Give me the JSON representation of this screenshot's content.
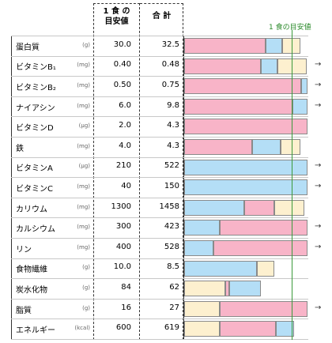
{
  "header": {
    "target": "1 食 の\n目安値",
    "total": "合 計",
    "legend": "1 食の目安値"
  },
  "rows": [
    {
      "name": "蛋白質",
      "unit": "(g)",
      "target": "30.0",
      "total": "32.5",
      "segments": [
        {
          "color": "#f8b4c8",
          "value": 76
        },
        {
          "color": "#b4def6",
          "value": 15
        },
        {
          "color": "#fdf0cf",
          "value": 17
        }
      ]
    },
    {
      "name": "ビタミンB₁",
      "unit": "(mg)",
      "target": "0.40",
      "total": "0.48",
      "arrow": "→",
      "segments": [
        {
          "color": "#f8b4c8",
          "value": 71
        },
        {
          "color": "#b4def6",
          "value": 16
        },
        {
          "color": "#fdf0cf",
          "value": 27
        }
      ]
    },
    {
      "name": "ビタミンB₂",
      "unit": "(mg)",
      "target": "0.50",
      "total": "0.75",
      "arrow": "→",
      "segments": [
        {
          "color": "#f8b4c8",
          "value": 109
        },
        {
          "color": "#b4def6",
          "value": 6
        }
      ]
    },
    {
      "name": "ナイアシン",
      "unit": "(mg)",
      "target": "6.0",
      "total": "9.8",
      "arrow": "→",
      "segments": [
        {
          "color": "#f8b4c8",
          "value": 101
        },
        {
          "color": "#b4def6",
          "value": 14
        }
      ]
    },
    {
      "name": "ビタミンD",
      "unit": "(μg)",
      "target": "2.0",
      "total": "4.3",
      "segments": [
        {
          "color": "#f8b4c8",
          "value": 115
        }
      ]
    },
    {
      "name": "鉄",
      "unit": "(mg)",
      "target": "4.0",
      "total": "4.3",
      "segments": [
        {
          "color": "#f8b4c8",
          "value": 63
        },
        {
          "color": "#b4def6",
          "value": 27
        },
        {
          "color": "#fdf0cf",
          "value": 18
        }
      ]
    },
    {
      "name": "ビタミンA",
      "unit": "(μg)",
      "target": "210",
      "total": "522",
      "arrow": "→",
      "segments": [
        {
          "color": "#b4def6",
          "value": 115
        }
      ]
    },
    {
      "name": "ビタミンC",
      "unit": "(mg)",
      "target": "40",
      "total": "150",
      "arrow": "→",
      "segments": [
        {
          "color": "#b4def6",
          "value": 115
        }
      ]
    },
    {
      "name": "カリウム",
      "unit": "(mg)",
      "target": "1300",
      "total": "1458",
      "segments": [
        {
          "color": "#b4def6",
          "value": 56
        },
        {
          "color": "#f8b4c8",
          "value": 28
        },
        {
          "color": "#fdf0cf",
          "value": 28
        }
      ]
    },
    {
      "name": "カルシウム",
      "unit": "(mg)",
      "target": "300",
      "total": "423",
      "arrow": "→",
      "segments": [
        {
          "color": "#b4def6",
          "value": 33
        },
        {
          "color": "#f8b4c8",
          "value": 82
        }
      ]
    },
    {
      "name": "リン",
      "unit": "(mg)",
      "target": "400",
      "total": "528",
      "arrow": "→",
      "segments": [
        {
          "color": "#b4def6",
          "value": 27
        },
        {
          "color": "#f8b4c8",
          "value": 88
        }
      ]
    },
    {
      "name": "食物繊維",
      "unit": "(g)",
      "target": "10.0",
      "total": "8.5",
      "segments": [
        {
          "color": "#b4def6",
          "value": 68
        },
        {
          "color": "#fdf0cf",
          "value": 16
        }
      ]
    },
    {
      "name": "炭水化物",
      "unit": "(g)",
      "target": "84",
      "total": "62",
      "segments": [
        {
          "color": "#fdf0cf",
          "value": 38
        },
        {
          "color": "#f8b4c8",
          "value": 4
        },
        {
          "color": "#b4def6",
          "value": 29
        }
      ]
    },
    {
      "name": "脂質",
      "unit": "(g)",
      "target": "16",
      "total": "27",
      "arrow": "→",
      "segments": [
        {
          "color": "#fdf0cf",
          "value": 33
        },
        {
          "color": "#f8b4c8",
          "value": 82
        }
      ]
    },
    {
      "name": "エネルギー",
      "unit": "(kcal)",
      "target": "600",
      "total": "619",
      "segments": [
        {
          "color": "#fdf0cf",
          "value": 33
        },
        {
          "color": "#f8b4c8",
          "value": 52
        },
        {
          "color": "#b4def6",
          "value": 17
        }
      ]
    }
  ]
}
